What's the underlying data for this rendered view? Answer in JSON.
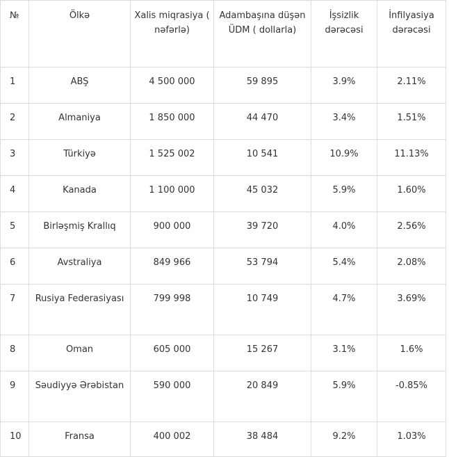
{
  "headers": [
    "№",
    "Ölkə",
    "Xalis miqrasiya ( nəfərlə)",
    "Adambaşına düşən ÜDM ( dollarla)",
    "İşsizlik dərəcəsi",
    "İnfilyasiya dərəcəsi"
  ],
  "rows": [
    [
      "1",
      "ABŞ",
      "4 500 000",
      "59 895",
      "3.9%",
      "2.11%"
    ],
    [
      "2",
      "Almaniya",
      "1 850 000",
      "44 470",
      "3.4%",
      "1.51%"
    ],
    [
      "3",
      "Türkiyə",
      "1 525 002",
      "10 541",
      "10.9%",
      "11.13%"
    ],
    [
      "4",
      "Kanada",
      "1 100 000",
      "45 032",
      "5.9%",
      "1.60%"
    ],
    [
      "5",
      "Birləşmiş Krallıq",
      "900 000",
      "39 720",
      "4.0%",
      "2.56%"
    ],
    [
      "6",
      "Avstraliya",
      "849 966",
      "53 794",
      "5.4%",
      "2.08%"
    ],
    [
      "7",
      "Rusiya Federasiyası",
      "799 998",
      "10 749",
      "4.7%",
      "3.69%"
    ],
    [
      "8",
      "Oman",
      "605 000",
      "15 267",
      "3.1%",
      "1.6%"
    ],
    [
      "9",
      "Səudiyyə Ərəbistan",
      "590 000",
      "20 849",
      "5.9%",
      "-0.85%"
    ],
    [
      "10",
      "Fransa",
      "400 002",
      "38 484",
      "9.2%",
      "1.03%"
    ]
  ]
}
